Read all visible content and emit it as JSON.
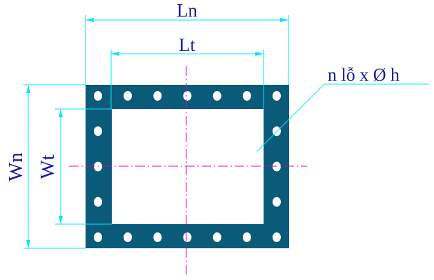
{
  "labels": {
    "outer_length": "Ln",
    "inner_length": "Lt",
    "outer_width": "Wn",
    "inner_width": "Wt",
    "holes_note": "n lỗ x Ø h"
  },
  "colors": {
    "flange": "#0a5a7a",
    "dimension_lines": "#00e5ff",
    "center_lines": "#e000c0",
    "text": "#1a1aa0",
    "hole": "#ffffff",
    "background": "#ffffff"
  },
  "holes": {
    "top_row_count": 7,
    "bottom_row_count": 7,
    "side_column_count": 5,
    "icon": "circle-hole-icon"
  }
}
